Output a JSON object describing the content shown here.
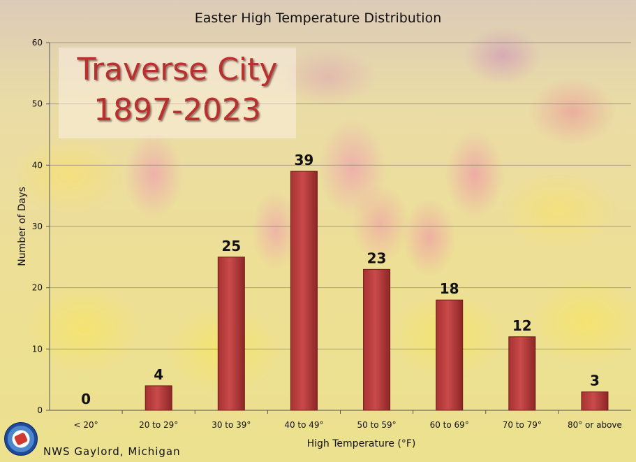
{
  "overlay": {
    "line1": "Traverse City",
    "line2": "1897-2023",
    "color": "#b8312f"
  },
  "footer": "NWS Gaylord, Michigan",
  "logo": "nws-logo-icon",
  "chart_data": {
    "type": "bar",
    "title": "Easter High Temperature Distribution",
    "xlabel": "High Temperature (°F)",
    "ylabel": "Number of Days",
    "categories": [
      "< 20°",
      "20 to 29°",
      "30 to 39°",
      "40 to 49°",
      "50 to 59°",
      "60 to 69°",
      "70 to 79°",
      "80° or above"
    ],
    "values": [
      0,
      4,
      25,
      39,
      23,
      18,
      12,
      3
    ],
    "yticks": [
      0,
      10,
      20,
      30,
      40,
      50,
      60
    ],
    "ylim": [
      0,
      60
    ],
    "grid": true,
    "bar_color": "#c94a4a",
    "data_labels": true
  }
}
